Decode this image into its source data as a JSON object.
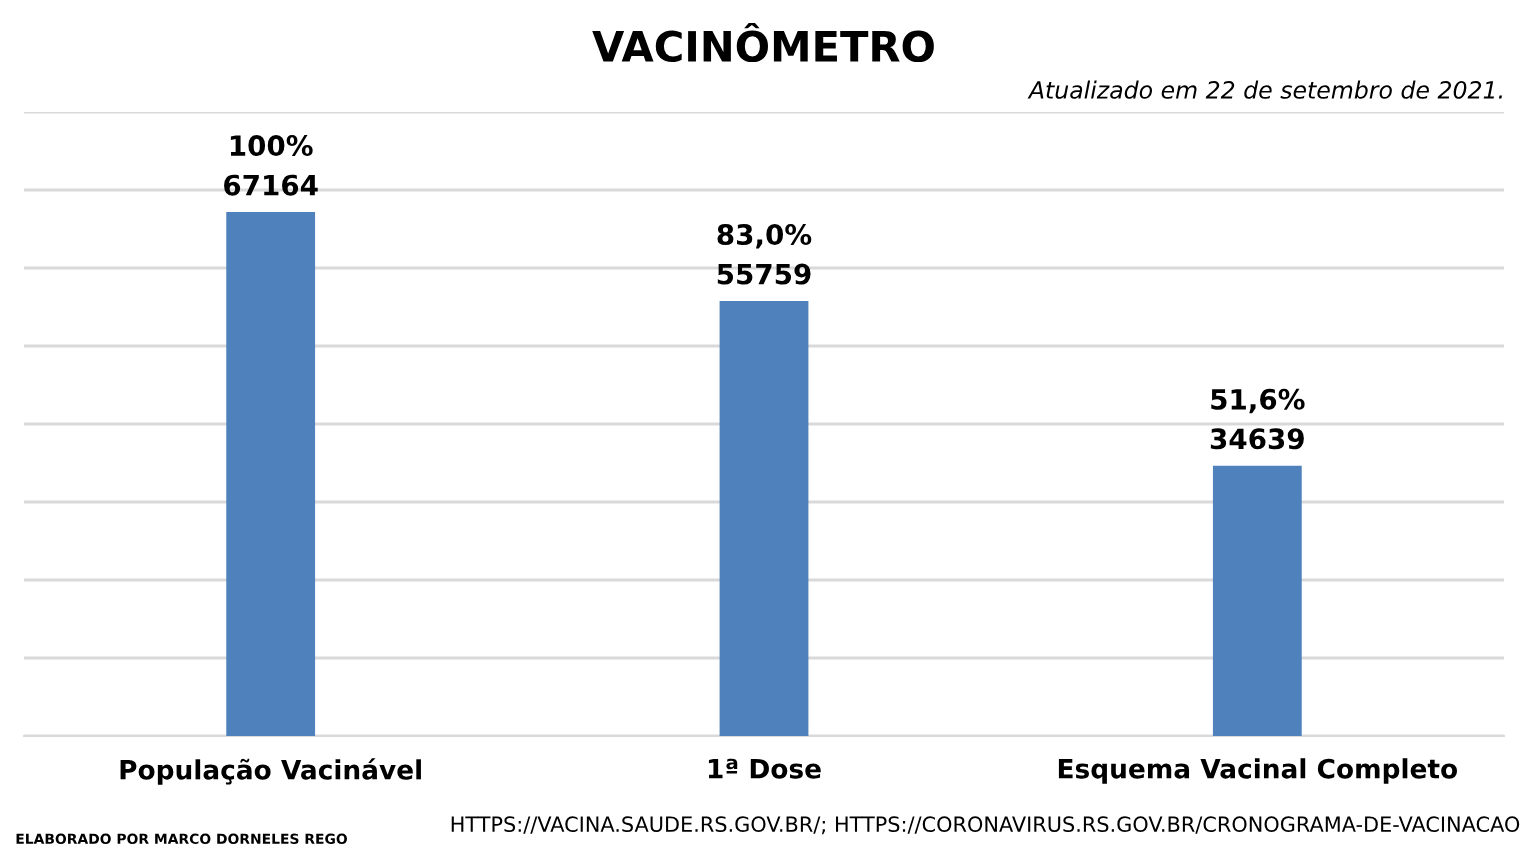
{
  "chart_data": {
    "type": "bar",
    "title": "VACINÔMETRO",
    "subtitle": "Atualizado em 22 de setembro de 2021.",
    "categories": [
      "População Vacinável",
      "1ª Dose",
      "Esquema Vacinal Completo"
    ],
    "values": [
      67164,
      55759,
      34639
    ],
    "color": "#4f81bd",
    "value_labels": [
      "100%\n67164",
      "83,0%\n55759",
      "51,6%\n34639"
    ],
    "ylim": [
      0,
      80000
    ],
    "yticks": [
      {
        "value": 0,
        "label": null
      },
      {
        "value": 10000,
        "label": null
      },
      {
        "value": 20000,
        "label": null
      },
      {
        "value": 30000,
        "label": null
      },
      {
        "value": 40000,
        "label": null
      },
      {
        "value": 50000,
        "label": null
      },
      {
        "value": 60000,
        "label": null
      },
      {
        "value": 70000,
        "label": null
      },
      {
        "value": 80000,
        "label": null
      }
    ],
    "grid": "y",
    "tick_labels": "x",
    "annotations": [
      "ELABORADO POR MARCO DORNELES REGO",
      "HTTPS://VACINA.SAUDE.RS.GOV.BR/; HTTPS://CORONAVIRUS.RS.GOV.BR/CRONOGRAMA-DE-VACINACAO"
    ]
  }
}
